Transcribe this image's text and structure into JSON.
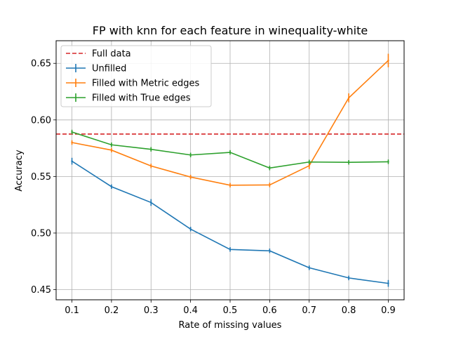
{
  "chart_data": {
    "type": "line",
    "title": "FP with knn for each feature in winequality-white",
    "xlabel": "Rate of missing values",
    "ylabel": "Accuracy",
    "x": [
      0.1,
      0.2,
      0.3,
      0.4,
      0.5,
      0.6,
      0.7,
      0.8,
      0.9
    ],
    "x_ticks": [
      "0.1",
      "0.2",
      "0.3",
      "0.4",
      "0.5",
      "0.6",
      "0.7",
      "0.8",
      "0.9"
    ],
    "xlim": [
      0.06,
      0.94
    ],
    "ylim": [
      0.441,
      0.67
    ],
    "y_ticks": [
      "0.45",
      "0.50",
      "0.55",
      "0.60",
      "0.65"
    ],
    "grid": true,
    "legend_position": "top-left",
    "reference_line": {
      "name": "Full data",
      "value": 0.5875,
      "color": "#d62728",
      "style": "dashed"
    },
    "series": [
      {
        "name": "Unfilled",
        "color": "#1f77b4",
        "values": [
          0.5635,
          0.541,
          0.527,
          0.5035,
          0.4855,
          0.4843,
          0.4693,
          0.4603,
          0.4555
        ],
        "errors": [
          0.003,
          0.002,
          0.003,
          0.002,
          0.002,
          0.002,
          0.002,
          0.002,
          0.003
        ]
      },
      {
        "name": "Filled with Metric edges",
        "color": "#ff7f0e",
        "values": [
          0.58,
          0.5733,
          0.5593,
          0.5495,
          0.5423,
          0.5425,
          0.5595,
          0.6195,
          0.6525
        ],
        "errors": [
          0.002,
          0.002,
          0.002,
          0.002,
          0.002,
          0.002,
          0.003,
          0.004,
          0.006
        ]
      },
      {
        "name": "Filled with True edges",
        "color": "#2ca02c",
        "values": [
          0.5893,
          0.578,
          0.574,
          0.569,
          0.5713,
          0.5575,
          0.5628,
          0.5625,
          0.563
        ],
        "errors": [
          0.002,
          0.002,
          0.002,
          0.002,
          0.002,
          0.002,
          0.002,
          0.002,
          0.002
        ]
      }
    ]
  }
}
